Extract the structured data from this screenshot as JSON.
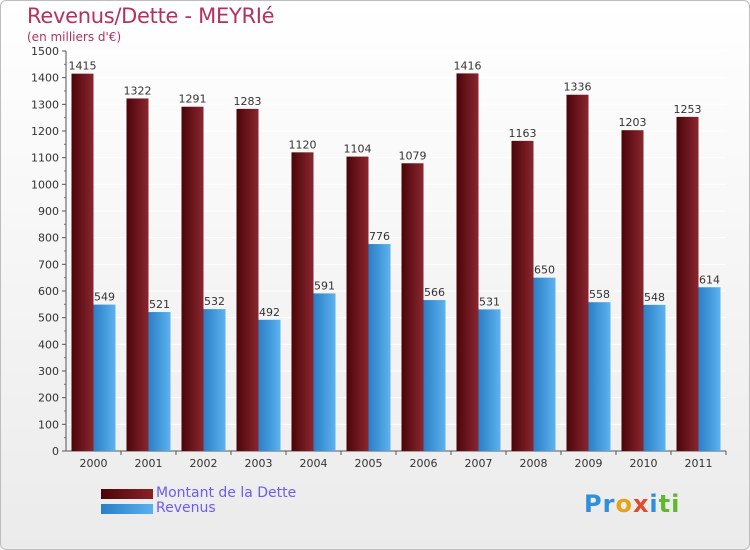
{
  "chart_data": {
    "type": "bar",
    "title": "Revenus/Dette - MEYRIé",
    "subtitle": "(en milliers d'€)",
    "categories": [
      "2000",
      "2001",
      "2002",
      "2003",
      "2004",
      "2005",
      "2006",
      "2007",
      "2008",
      "2009",
      "2010",
      "2011"
    ],
    "series": [
      {
        "name": "Montant de la Dette",
        "color": "#6b0f14",
        "values": [
          1415,
          1322,
          1291,
          1283,
          1120,
          1104,
          1079,
          1416,
          1163,
          1336,
          1203,
          1253
        ]
      },
      {
        "name": "Revenus",
        "color": "#3d9be0",
        "values": [
          549,
          521,
          532,
          492,
          591,
          776,
          566,
          531,
          650,
          558,
          548,
          614
        ]
      }
    ],
    "ylim": [
      0,
      1500
    ],
    "yticks": [
      0,
      100,
      200,
      300,
      400,
      500,
      600,
      700,
      800,
      900,
      1000,
      1100,
      1200,
      1300,
      1400,
      1500
    ],
    "grid": true,
    "legend_position": "bottom-left"
  },
  "logo": {
    "letters": [
      "Pr",
      "o",
      "x",
      "i",
      "t",
      "i"
    ],
    "alt": "Proxiti"
  },
  "colors": {
    "title": "#b5305f",
    "legend_text": "#6a5cf0"
  }
}
